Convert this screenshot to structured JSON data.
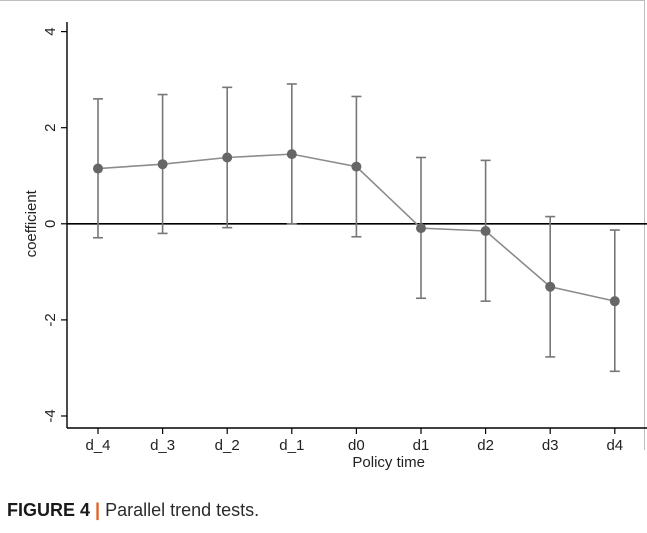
{
  "chart_data": {
    "type": "line",
    "categories": [
      "d_4",
      "d_3",
      "d_2",
      "d_1",
      "d0",
      "d1",
      "d2",
      "d3",
      "d4"
    ],
    "series": [
      {
        "values": [
          1.15,
          1.24,
          1.38,
          1.45,
          1.19,
          -0.09,
          -0.15,
          -1.31,
          -1.61
        ],
        "ci_lower": [
          -0.29,
          -0.2,
          -0.08,
          0.0,
          -0.27,
          -1.55,
          -1.61,
          -2.77,
          -3.07
        ],
        "ci_upper": [
          2.6,
          2.69,
          2.84,
          2.91,
          2.65,
          1.38,
          1.32,
          0.15,
          -0.13
        ]
      }
    ],
    "xlabel": "Policy time",
    "ylabel": "coefficient",
    "yticks": [
      4,
      2,
      0,
      -2,
      -4
    ],
    "ylim": [
      -4.25,
      4.2
    ],
    "reference_line": 0,
    "grid": false,
    "colors": {
      "line": "#8c8c8c",
      "marker": "#666666",
      "errorbar": "#777777",
      "reference": "#000000"
    }
  },
  "caption": {
    "label": "FIGURE 4",
    "separator": "|",
    "text": "Parallel trend tests."
  }
}
